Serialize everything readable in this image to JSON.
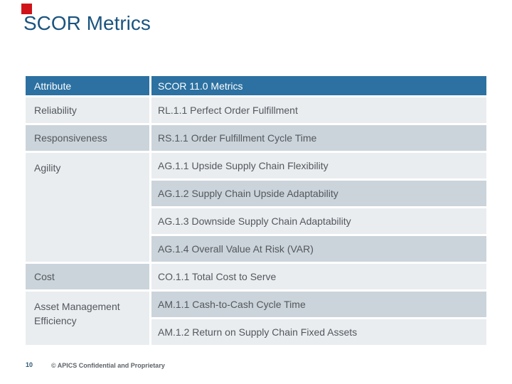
{
  "theme": {
    "accent_red": "#d01319",
    "title_color": "#1a5480",
    "header_bg": "#2c71a1",
    "light_bg": "#e9edf0",
    "dark_bg": "#cbd4da",
    "body_text": "#53585d",
    "page_number_color": "#2e5a74",
    "footer_text": "#5d6368"
  },
  "slide": {
    "title": "SCOR Metrics"
  },
  "table": {
    "header": {
      "attribute_label": "Attribute",
      "metrics_label": "SCOR 11.0 Metrics"
    },
    "rows": [
      {
        "attr": "Reliability",
        "attr_span": 1,
        "attr_shade": "light",
        "metric": "RL.1.1 Perfect Order Fulfillment",
        "metric_shade": "light"
      },
      {
        "attr": "Responsiveness",
        "attr_span": 1,
        "attr_shade": "dark",
        "metric": "RS.1.1 Order Fulfillment Cycle Time",
        "metric_shade": "dark"
      },
      {
        "attr": "Agility",
        "attr_span": 4,
        "attr_shade": "light",
        "metric": "AG.1.1 Upside Supply Chain Flexibility",
        "metric_shade": "light"
      },
      {
        "attr": null,
        "metric": "AG.1.2 Supply Chain Upside Adaptability",
        "metric_shade": "dark"
      },
      {
        "attr": null,
        "metric": "AG.1.3 Downside Supply Chain Adaptability",
        "metric_shade": "light"
      },
      {
        "attr": null,
        "metric": "AG.1.4 Overall Value At Risk (VAR)",
        "metric_shade": "dark"
      },
      {
        "attr": "Cost",
        "attr_span": 1,
        "attr_shade": "dark",
        "metric": "CO.1.1 Total Cost to Serve",
        "metric_shade": "light"
      },
      {
        "attr": "Asset Management Efficiency",
        "attr_span": 2,
        "attr_shade": "light",
        "metric": "AM.1.1 Cash-to-Cash Cycle Time",
        "metric_shade": "dark"
      },
      {
        "attr": null,
        "metric": "AM.1.2 Return on Supply Chain Fixed Assets",
        "metric_shade": "light"
      }
    ]
  },
  "footer": {
    "page_number": "10",
    "copyright": "© APICS Confidential and Proprietary"
  }
}
